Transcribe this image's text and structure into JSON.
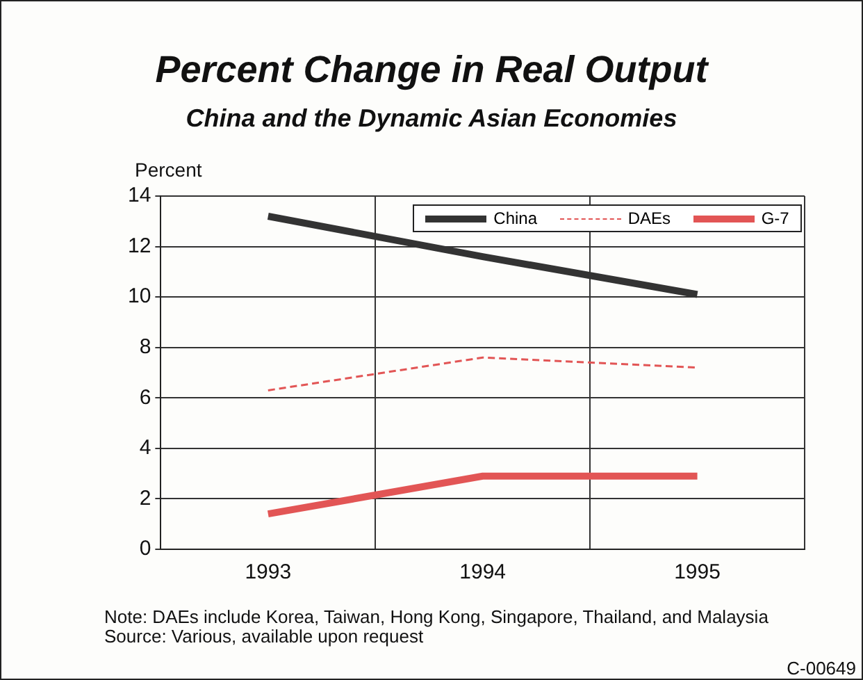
{
  "chart_data": {
    "type": "line",
    "title": "Percent Change in Real Output",
    "subtitle": "China and the Dynamic Asian Economies",
    "ylabel": "Percent",
    "categories": [
      "1993",
      "1994",
      "1995"
    ],
    "series": [
      {
        "name": "China",
        "color": "#333333",
        "values": [
          13.2,
          11.6,
          10.1
        ]
      },
      {
        "name": "DAEs",
        "color": "#e25555",
        "values": [
          6.3,
          7.6,
          7.2
        ],
        "line_style": "dashed"
      },
      {
        "name": "G-7",
        "color": "#e25555",
        "values": [
          1.4,
          2.9,
          2.9
        ]
      }
    ],
    "ylim": [
      0,
      14
    ],
    "yticks": [
      0,
      2,
      4,
      6,
      8,
      10,
      12,
      14
    ],
    "grid": true,
    "legend": "top right",
    "line_style": "solid",
    "annotations": [
      "Note: DAEs include Korea, Taiwan, Hong Kong, Singapore, Thailand, and Malaysia",
      "Source: Various, available upon request",
      "C-00649"
    ]
  }
}
